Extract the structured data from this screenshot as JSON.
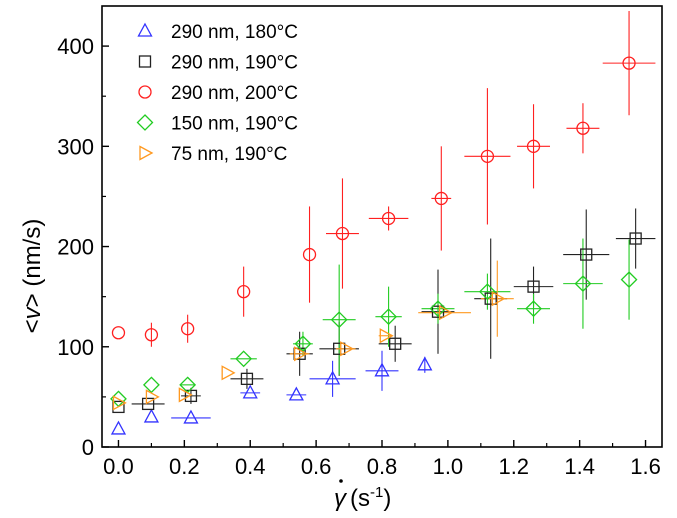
{
  "chart_data": {
    "type": "scatter",
    "xlabel": "(s",
    "xlabel_symbol": "γ",
    "xlabel_exp": "-1",
    "xlabel_close": ")",
    "ylabel_pre": "<",
    "ylabel_var": "v",
    "ylabel_post": "> (nm/s)",
    "xlim": [
      -0.05,
      1.65
    ],
    "ylim": [
      0,
      440
    ],
    "xticks": [
      0.0,
      0.2,
      0.4,
      0.6,
      0.8,
      1.0,
      1.2,
      1.4,
      1.6
    ],
    "xtick_labels": [
      "0.0",
      "0.2",
      "0.4",
      "0.6",
      "0.8",
      "1.0",
      "1.2",
      "1.4",
      "1.6"
    ],
    "yticks": [
      0,
      100,
      200,
      300,
      400
    ],
    "ytick_labels": [
      "0",
      "100",
      "200",
      "300",
      "400"
    ],
    "legend_position": "top-left",
    "series": [
      {
        "name": "290 nm, 180°C",
        "color": "#3333ff",
        "marker": "triangle-up",
        "points": [
          {
            "x": 0.0,
            "y": 18,
            "xerr": 0,
            "yerr": 0
          },
          {
            "x": 0.1,
            "y": 30,
            "xerr": 0,
            "yerr": 0
          },
          {
            "x": 0.22,
            "y": 29,
            "xerr": 0.06,
            "yerr": 0
          },
          {
            "x": 0.4,
            "y": 54,
            "xerr": 0.03,
            "yerr": 0
          },
          {
            "x": 0.54,
            "y": 52,
            "xerr": 0.03,
            "yerr": 0
          },
          {
            "x": 0.65,
            "y": 68,
            "xerr": 0.07,
            "yerr": 18
          },
          {
            "x": 0.8,
            "y": 76,
            "xerr": 0.05,
            "yerr": 20
          },
          {
            "x": 0.93,
            "y": 82,
            "xerr": 0,
            "yerr": 8
          }
        ]
      },
      {
        "name": "290 nm, 190°C",
        "color": "#222222",
        "marker": "square",
        "points": [
          {
            "x": 0.0,
            "y": 40,
            "xerr": 0,
            "yerr": 0
          },
          {
            "x": 0.09,
            "y": 43,
            "xerr": 0.05,
            "yerr": 0
          },
          {
            "x": 0.22,
            "y": 51,
            "xerr": 0.03,
            "yerr": 8
          },
          {
            "x": 0.39,
            "y": 68,
            "xerr": 0.05,
            "yerr": 10
          },
          {
            "x": 0.55,
            "y": 93,
            "xerr": 0.04,
            "yerr": 22
          },
          {
            "x": 0.67,
            "y": 98,
            "xerr": 0.06,
            "yerr": 27
          },
          {
            "x": 0.84,
            "y": 103,
            "xerr": 0.05,
            "yerr": 18
          },
          {
            "x": 0.97,
            "y": 135,
            "xerr": 0.05,
            "yerr": 42
          },
          {
            "x": 1.13,
            "y": 148,
            "xerr": 0.05,
            "yerr": 60
          },
          {
            "x": 1.26,
            "y": 160,
            "xerr": 0.06,
            "yerr": 20
          },
          {
            "x": 1.42,
            "y": 192,
            "xerr": 0.07,
            "yerr": 45
          },
          {
            "x": 1.57,
            "y": 208,
            "xerr": 0.06,
            "yerr": 30
          }
        ]
      },
      {
        "name": "290 nm, 200°C",
        "color": "#ff2020",
        "marker": "circle",
        "points": [
          {
            "x": 0.0,
            "y": 114,
            "xerr": 0,
            "yerr": 0
          },
          {
            "x": 0.1,
            "y": 112,
            "xerr": 0,
            "yerr": 12
          },
          {
            "x": 0.21,
            "y": 118,
            "xerr": 0,
            "yerr": 14
          },
          {
            "x": 0.38,
            "y": 155,
            "xerr": 0,
            "yerr": 25
          },
          {
            "x": 0.58,
            "y": 192,
            "xerr": 0,
            "yerr": 48
          },
          {
            "x": 0.68,
            "y": 213,
            "xerr": 0.05,
            "yerr": 55
          },
          {
            "x": 0.82,
            "y": 228,
            "xerr": 0.06,
            "yerr": 12
          },
          {
            "x": 0.98,
            "y": 248,
            "xerr": 0.03,
            "yerr": 52
          },
          {
            "x": 1.12,
            "y": 290,
            "xerr": 0.07,
            "yerr": 68
          },
          {
            "x": 1.26,
            "y": 300,
            "xerr": 0.05,
            "yerr": 42
          },
          {
            "x": 1.41,
            "y": 318,
            "xerr": 0.05,
            "yerr": 25
          },
          {
            "x": 1.55,
            "y": 383,
            "xerr": 0.08,
            "yerr": 52
          }
        ]
      },
      {
        "name": "150 nm, 190°C",
        "color": "#22cc22",
        "marker": "diamond",
        "points": [
          {
            "x": 0.0,
            "y": 48,
            "xerr": 0,
            "yerr": 0
          },
          {
            "x": 0.1,
            "y": 62,
            "xerr": 0,
            "yerr": 0
          },
          {
            "x": 0.21,
            "y": 62,
            "xerr": 0.02,
            "yerr": 0
          },
          {
            "x": 0.38,
            "y": 88,
            "xerr": 0.04,
            "yerr": 0
          },
          {
            "x": 0.56,
            "y": 103,
            "xerr": 0.03,
            "yerr": 12
          },
          {
            "x": 0.67,
            "y": 127,
            "xerr": 0.05,
            "yerr": 55
          },
          {
            "x": 0.82,
            "y": 130,
            "xerr": 0.04,
            "yerr": 30
          },
          {
            "x": 0.97,
            "y": 138,
            "xerr": 0.05,
            "yerr": 15
          },
          {
            "x": 1.12,
            "y": 155,
            "xerr": 0.07,
            "yerr": 18
          },
          {
            "x": 1.26,
            "y": 138,
            "xerr": 0.05,
            "yerr": 15
          },
          {
            "x": 1.41,
            "y": 163,
            "xerr": 0.06,
            "yerr": 45
          },
          {
            "x": 1.55,
            "y": 167,
            "xerr": 0,
            "yerr": 40
          }
        ]
      },
      {
        "name": "75 nm, 190°C",
        "color": "#ff9920",
        "marker": "triangle-right",
        "points": [
          {
            "x": 0.0,
            "y": 44,
            "xerr": 0,
            "yerr": 0
          },
          {
            "x": 0.1,
            "y": 50,
            "xerr": 0,
            "yerr": 0
          },
          {
            "x": 0.2,
            "y": 52,
            "xerr": 0,
            "yerr": 0
          },
          {
            "x": 0.33,
            "y": 74,
            "xerr": 0,
            "yerr": 0
          },
          {
            "x": 0.55,
            "y": 93,
            "xerr": 0.03,
            "yerr": 0
          },
          {
            "x": 0.69,
            "y": 98,
            "xerr": 0.03,
            "yerr": 0
          },
          {
            "x": 0.81,
            "y": 111,
            "xerr": 0.02,
            "yerr": 0
          },
          {
            "x": 0.99,
            "y": 134,
            "xerr": 0.08,
            "yerr": 0
          },
          {
            "x": 1.15,
            "y": 148,
            "xerr": 0.05,
            "yerr": 38
          }
        ]
      }
    ]
  }
}
